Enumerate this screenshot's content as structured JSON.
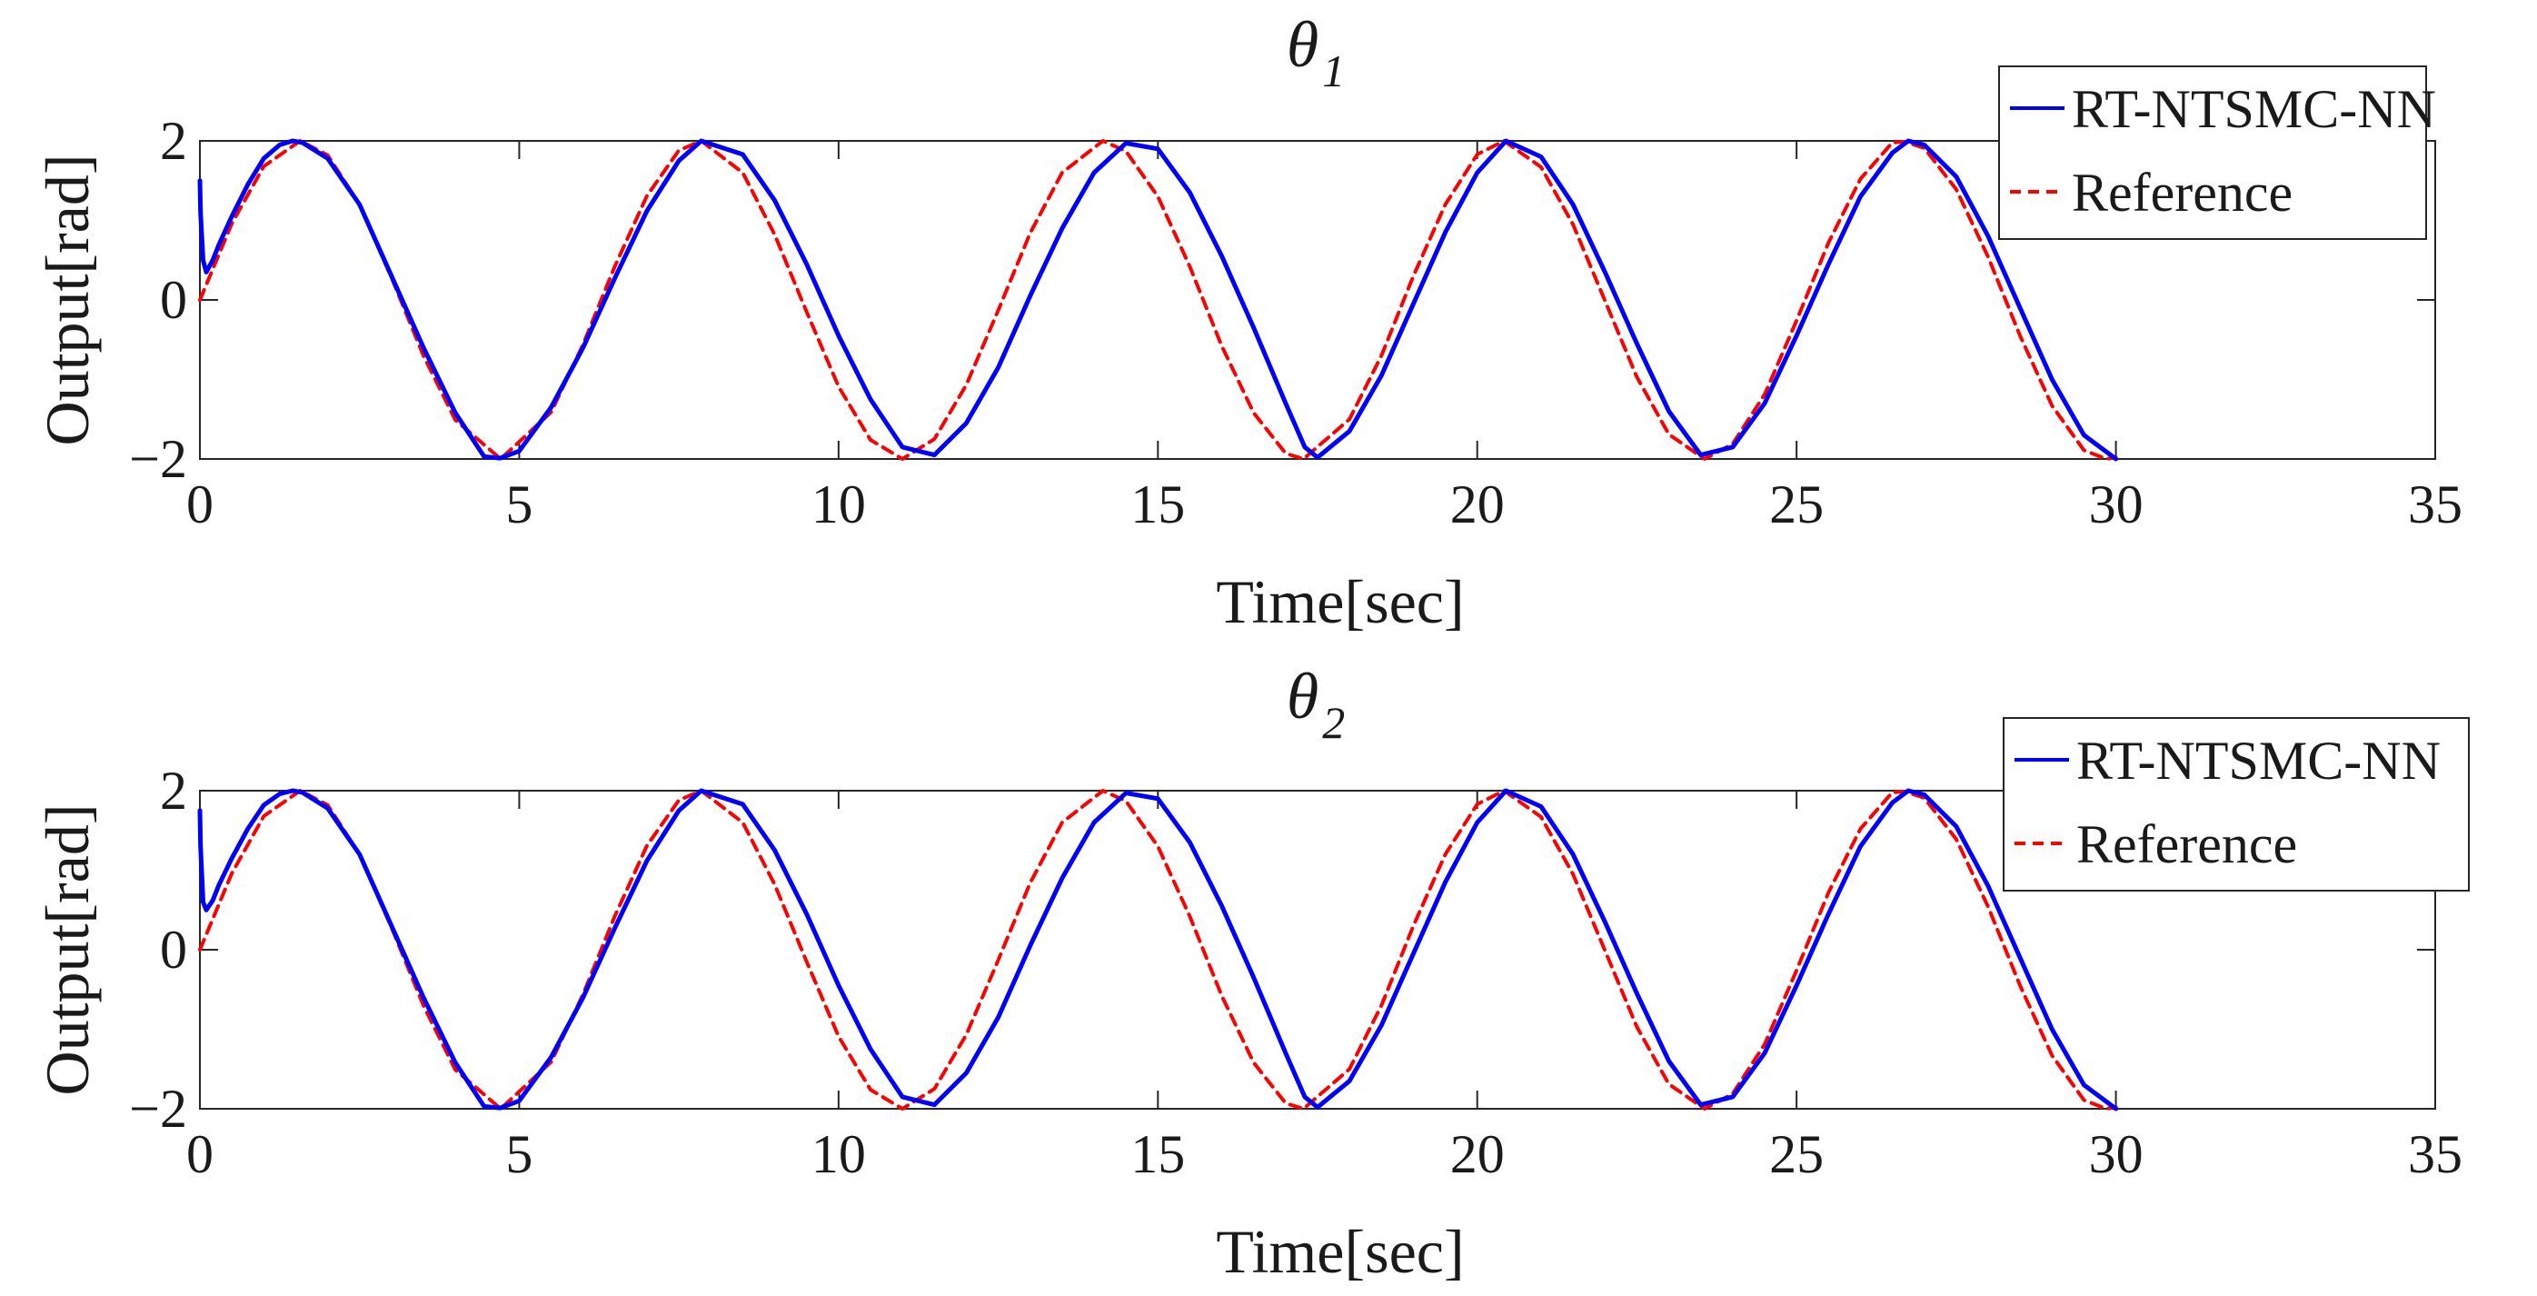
{
  "chart_data": [
    {
      "type": "line",
      "title": {
        "symbol": "θ",
        "subscript": "1"
      },
      "xlabel": "Time[sec]",
      "ylabel": "Output[rad]",
      "xlim": [
        0,
        35
      ],
      "ylim": [
        -2,
        2
      ],
      "xticks": [
        0,
        5,
        10,
        15,
        20,
        25,
        30,
        35
      ],
      "yticks": [
        -2,
        0,
        2
      ],
      "ytick_labels": [
        "−2",
        "0",
        "2"
      ],
      "grid": false,
      "legend_position": "top-right",
      "series": [
        {
          "name": "RT-NTSMC-NN",
          "style": "solid",
          "color": "#0000ff",
          "x": [
            0,
            0.01,
            0.05,
            0.1,
            0.2,
            0.3,
            0.5,
            0.75,
            1.0,
            1.25,
            1.45,
            1.6,
            2.0,
            2.5,
            3.0,
            3.5,
            4.0,
            4.45,
            4.7,
            5.0,
            5.5,
            6.0,
            6.5,
            7.0,
            7.5,
            7.85,
            8.5,
            9.0,
            9.5,
            10.0,
            10.5,
            11.0,
            11.5,
            12.0,
            12.5,
            13.0,
            13.5,
            14.0,
            14.5,
            15.0,
            15.5,
            16.0,
            16.5,
            17.0,
            17.3,
            17.5,
            18.0,
            18.5,
            19.0,
            19.5,
            20.0,
            20.45,
            21.0,
            21.5,
            22.0,
            22.5,
            23.0,
            23.5,
            24.0,
            24.5,
            25.0,
            25.5,
            26.0,
            26.5,
            26.75,
            27.0,
            27.5,
            28.0,
            28.5,
            29.0,
            29.5,
            30.0
          ],
          "y": [
            1.5,
            1.1,
            0.5,
            0.35,
            0.5,
            0.7,
            1.05,
            1.45,
            1.78,
            1.95,
            2.0,
            1.98,
            1.78,
            1.2,
            0.3,
            -0.6,
            -1.42,
            -1.97,
            -1.99,
            -1.9,
            -1.35,
            -0.6,
            0.28,
            1.12,
            1.75,
            2.0,
            1.83,
            1.25,
            0.45,
            -0.45,
            -1.25,
            -1.85,
            -1.95,
            -1.55,
            -0.85,
            0.05,
            0.9,
            1.6,
            1.97,
            1.9,
            1.35,
            0.55,
            -0.35,
            -1.3,
            -1.85,
            -1.98,
            -1.65,
            -0.95,
            -0.05,
            0.85,
            1.6,
            2.0,
            1.8,
            1.2,
            0.35,
            -0.55,
            -1.4,
            -1.95,
            -1.85,
            -1.3,
            -0.45,
            0.45,
            1.3,
            1.85,
            2.0,
            1.95,
            1.55,
            0.8,
            -0.1,
            -1.0,
            -1.7,
            -2.0
          ]
        },
        {
          "name": "Reference",
          "style": "dashed",
          "color": "#ff0000",
          "x": [
            0,
            0.5,
            1.0,
            1.57,
            2.0,
            2.5,
            3.0,
            3.5,
            4.0,
            4.71,
            5.5,
            6.0,
            6.5,
            7.0,
            7.5,
            7.85,
            8.5,
            9.0,
            9.5,
            10.0,
            10.5,
            11.0,
            11.5,
            12.0,
            12.5,
            13.0,
            13.5,
            14.14,
            14.5,
            15.0,
            15.5,
            16.0,
            16.5,
            17.0,
            17.28,
            18.0,
            18.5,
            19.0,
            19.5,
            20.0,
            20.42,
            21.0,
            21.5,
            22.0,
            22.5,
            23.0,
            23.56,
            24.0,
            24.5,
            25.0,
            25.5,
            26.0,
            26.5,
            26.7,
            27.0,
            27.5,
            28.0,
            28.5,
            29.0,
            29.5,
            29.85,
            30.0
          ],
          "y": [
            0,
            0.96,
            1.68,
            2.0,
            1.82,
            1.2,
            0.28,
            -0.7,
            -1.51,
            -2.0,
            -1.41,
            -0.56,
            0.43,
            1.31,
            1.88,
            2.0,
            1.6,
            0.82,
            -0.15,
            -1.09,
            -1.76,
            -2.0,
            -1.75,
            -1.07,
            -0.13,
            0.84,
            1.6,
            2.0,
            1.87,
            1.3,
            0.42,
            -0.58,
            -1.42,
            -1.93,
            -2.0,
            -1.5,
            -0.7,
            0.3,
            1.2,
            1.83,
            2.0,
            1.67,
            0.95,
            -0.01,
            -0.97,
            -1.69,
            -2.0,
            -1.81,
            -1.19,
            -0.26,
            0.72,
            1.52,
            1.98,
            1.99,
            1.91,
            1.39,
            0.54,
            -0.45,
            -1.33,
            -1.89,
            -2.0,
            -1.98
          ]
        }
      ]
    },
    {
      "type": "line",
      "title": {
        "symbol": "θ",
        "subscript": "2"
      },
      "xlabel": "Time[sec]",
      "ylabel": "Output[rad]",
      "xlim": [
        0,
        35
      ],
      "ylim": [
        -2,
        2
      ],
      "xticks": [
        0,
        5,
        10,
        15,
        20,
        25,
        30,
        35
      ],
      "yticks": [
        -2,
        0,
        2
      ],
      "ytick_labels": [
        "−2",
        "0",
        "2"
      ],
      "grid": false,
      "legend_position": "top-right",
      "series": [
        {
          "name": "RT-NTSMC-NN",
          "style": "solid",
          "color": "#0000ff",
          "x": [
            0,
            0.01,
            0.05,
            0.1,
            0.2,
            0.3,
            0.5,
            0.75,
            1.0,
            1.25,
            1.45,
            1.6,
            2.0,
            2.5,
            3.0,
            3.5,
            4.0,
            4.45,
            4.7,
            5.0,
            5.5,
            6.0,
            6.5,
            7.0,
            7.5,
            7.85,
            8.5,
            9.0,
            9.5,
            10.0,
            10.5,
            11.0,
            11.5,
            12.0,
            12.5,
            13.0,
            13.5,
            14.0,
            14.5,
            15.0,
            15.5,
            16.0,
            16.5,
            17.0,
            17.3,
            17.5,
            18.0,
            18.5,
            19.0,
            19.5,
            20.0,
            20.45,
            21.0,
            21.5,
            22.0,
            22.5,
            23.0,
            23.5,
            24.0,
            24.5,
            25.0,
            25.5,
            26.0,
            26.5,
            26.75,
            27.0,
            27.5,
            28.0,
            28.5,
            29.0,
            29.5,
            30.0
          ],
          "y": [
            1.75,
            1.3,
            0.6,
            0.5,
            0.62,
            0.82,
            1.15,
            1.52,
            1.82,
            1.96,
            2.0,
            1.98,
            1.78,
            1.2,
            0.3,
            -0.6,
            -1.42,
            -1.97,
            -1.99,
            -1.9,
            -1.35,
            -0.6,
            0.28,
            1.12,
            1.75,
            2.0,
            1.83,
            1.25,
            0.45,
            -0.45,
            -1.25,
            -1.85,
            -1.95,
            -1.55,
            -0.85,
            0.05,
            0.9,
            1.6,
            1.97,
            1.9,
            1.35,
            0.55,
            -0.35,
            -1.3,
            -1.85,
            -1.98,
            -1.65,
            -0.95,
            -0.05,
            0.85,
            1.6,
            2.0,
            1.8,
            1.2,
            0.35,
            -0.55,
            -1.4,
            -1.95,
            -1.85,
            -1.3,
            -0.45,
            0.45,
            1.3,
            1.85,
            2.0,
            1.95,
            1.55,
            0.8,
            -0.1,
            -1.0,
            -1.7,
            -2.0
          ]
        },
        {
          "name": "Reference",
          "style": "dashed",
          "color": "#ff0000",
          "x": [
            0,
            0.5,
            1.0,
            1.57,
            2.0,
            2.5,
            3.0,
            3.5,
            4.0,
            4.71,
            5.5,
            6.0,
            6.5,
            7.0,
            7.5,
            7.85,
            8.5,
            9.0,
            9.5,
            10.0,
            10.5,
            11.0,
            11.5,
            12.0,
            12.5,
            13.0,
            13.5,
            14.14,
            14.5,
            15.0,
            15.5,
            16.0,
            16.5,
            17.0,
            17.28,
            18.0,
            18.5,
            19.0,
            19.5,
            20.0,
            20.42,
            21.0,
            21.5,
            22.0,
            22.5,
            23.0,
            23.56,
            24.0,
            24.5,
            25.0,
            25.5,
            26.0,
            26.5,
            26.7,
            27.0,
            27.5,
            28.0,
            28.5,
            29.0,
            29.5,
            29.85,
            30.0
          ],
          "y": [
            0,
            0.96,
            1.68,
            2.0,
            1.82,
            1.2,
            0.28,
            -0.7,
            -1.51,
            -2.0,
            -1.41,
            -0.56,
            0.43,
            1.31,
            1.88,
            2.0,
            1.6,
            0.82,
            -0.15,
            -1.09,
            -1.76,
            -2.0,
            -1.75,
            -1.07,
            -0.13,
            0.84,
            1.6,
            2.0,
            1.87,
            1.3,
            0.42,
            -0.58,
            -1.42,
            -1.93,
            -2.0,
            -1.5,
            -0.7,
            0.3,
            1.2,
            1.83,
            2.0,
            1.67,
            0.95,
            -0.01,
            -0.97,
            -1.69,
            -2.0,
            -1.81,
            -1.19,
            -0.26,
            0.72,
            1.52,
            1.98,
            1.99,
            1.91,
            1.39,
            0.54,
            -0.45,
            -1.33,
            -1.89,
            -2.0,
            -1.98
          ]
        }
      ]
    }
  ]
}
